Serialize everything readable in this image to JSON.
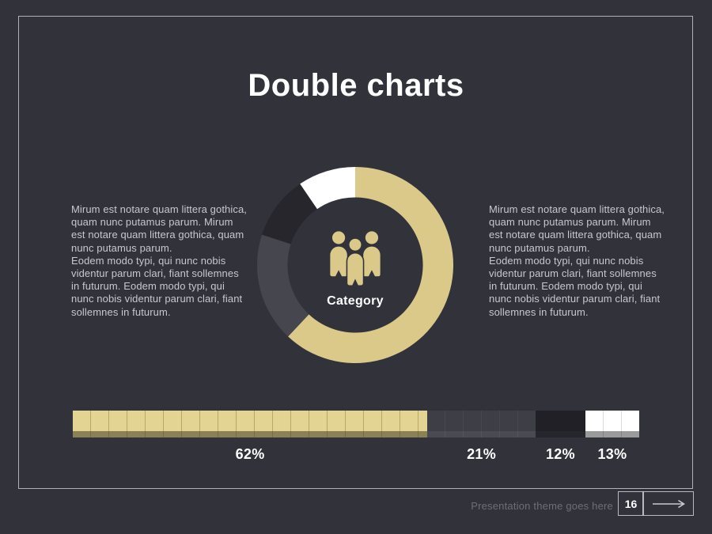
{
  "slide_title": "Double charts",
  "body_text": {
    "left": {
      "p1": "Mirum est notare quam littera gothica, quam nunc putamus parum. Mirum est notare quam littera gothica, quam nunc putamus parum.",
      "p2": "Eodem modo typi, qui nunc nobis videntur parum clari, fiant sollemnes in futurum. Eodem modo typi, qui nunc nobis videntur parum clari, fiant sollemnes in futurum."
    },
    "right": {
      "p1": "Mirum est notare quam littera gothica, quam nunc putamus parum. Mirum est notare quam littera gothica, quam nunc putamus parum.",
      "p2": "Eodem modo typi, qui nunc nobis videntur parum clari, fiant sollemnes in futurum. Eodem modo typi, qui nunc nobis videntur parum clari, fiant sollemnes in futurum."
    }
  },
  "footer": {
    "theme_label": "Presentation theme goes here",
    "page_number": "16"
  },
  "colors": {
    "background": "#32323b",
    "frame_border": "#c6c9d0",
    "title": "#ffffff",
    "body_text": "#c7c7cc",
    "footer_text": "#6e6e78",
    "accent_gold": "#dbc98a"
  },
  "chart_data": [
    {
      "type": "pie",
      "subtype": "donut",
      "center_label": "Category",
      "center_icon": "people-group-icon",
      "direction": "clockwise",
      "start_angle_deg": 0,
      "inner_radius_ratio": 0.69,
      "segments": [
        {
          "name": "segment-gold",
          "value": 62,
          "color": "#dbc98a"
        },
        {
          "name": "segment-slate",
          "value": 18,
          "color": "#46464f"
        },
        {
          "name": "segment-black",
          "value": 10.5,
          "color": "#26262c"
        },
        {
          "name": "segment-white",
          "value": 9.5,
          "color": "#ffffff"
        }
      ]
    },
    {
      "type": "bar",
      "subtype": "horizontal-stacked",
      "label_color": "#ffffff",
      "segments": [
        {
          "label": "62%",
          "value": 62,
          "color": "#e3d494",
          "base_color": "#8b8157",
          "grid_line_color": "rgba(80,66,20,0.30)",
          "width_pct": 62.6
        },
        {
          "label": "21%",
          "value": 21,
          "color": "#3e3e47",
          "base_color": "#4a4a53",
          "grid_line_color": "rgba(255,255,255,0.05)",
          "width_pct": 19.1
        },
        {
          "label": "12%",
          "value": 12,
          "color": "#202026",
          "base_color": "#26262d",
          "grid_line_color": null,
          "width_pct": 8.8
        },
        {
          "label": "13%",
          "value": 13,
          "color": "#ffffff",
          "base_color": "#9a9a9a",
          "grid_line_color": "rgba(0,0,0,0.14)",
          "width_pct": 9.5
        }
      ]
    }
  ]
}
